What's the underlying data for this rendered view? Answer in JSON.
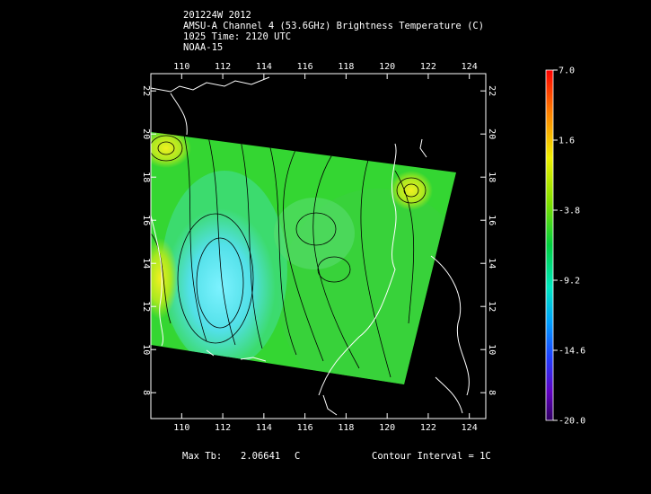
{
  "header": {
    "line1": "201224W 2012",
    "line2": "AMSU-A Channel 4 (53.6GHz) Brightness Temperature (C)",
    "line3": "1025 Time: 2120 UTC",
    "line4": "NOAA-15"
  },
  "map": {
    "lon_ticks": [
      "110",
      "112",
      "114",
      "116",
      "118",
      "120",
      "122",
      "124"
    ],
    "lat_ticks": [
      "8",
      "10",
      "12",
      "14",
      "16",
      "18",
      "20",
      "22"
    ],
    "lon_range": [
      108.5,
      124.8
    ],
    "lat_range": [
      6.8,
      22.8
    ]
  },
  "colorbar": {
    "labels": [
      "7.0",
      "1.6",
      "-3.8",
      "-9.2",
      "-14.6",
      "-20.0"
    ],
    "range": [
      -20.0,
      7.0
    ]
  },
  "footer": {
    "max_label": "Max Tb:",
    "max_value": "2.06641",
    "max_unit": "C",
    "contour": "Contour Interval = 1C"
  },
  "colors": {
    "field_base": "#33d632",
    "cold_core": "#58e8ff",
    "warm_spot": "#d8f020",
    "coast": "#ffffff",
    "contour": "#000000"
  }
}
